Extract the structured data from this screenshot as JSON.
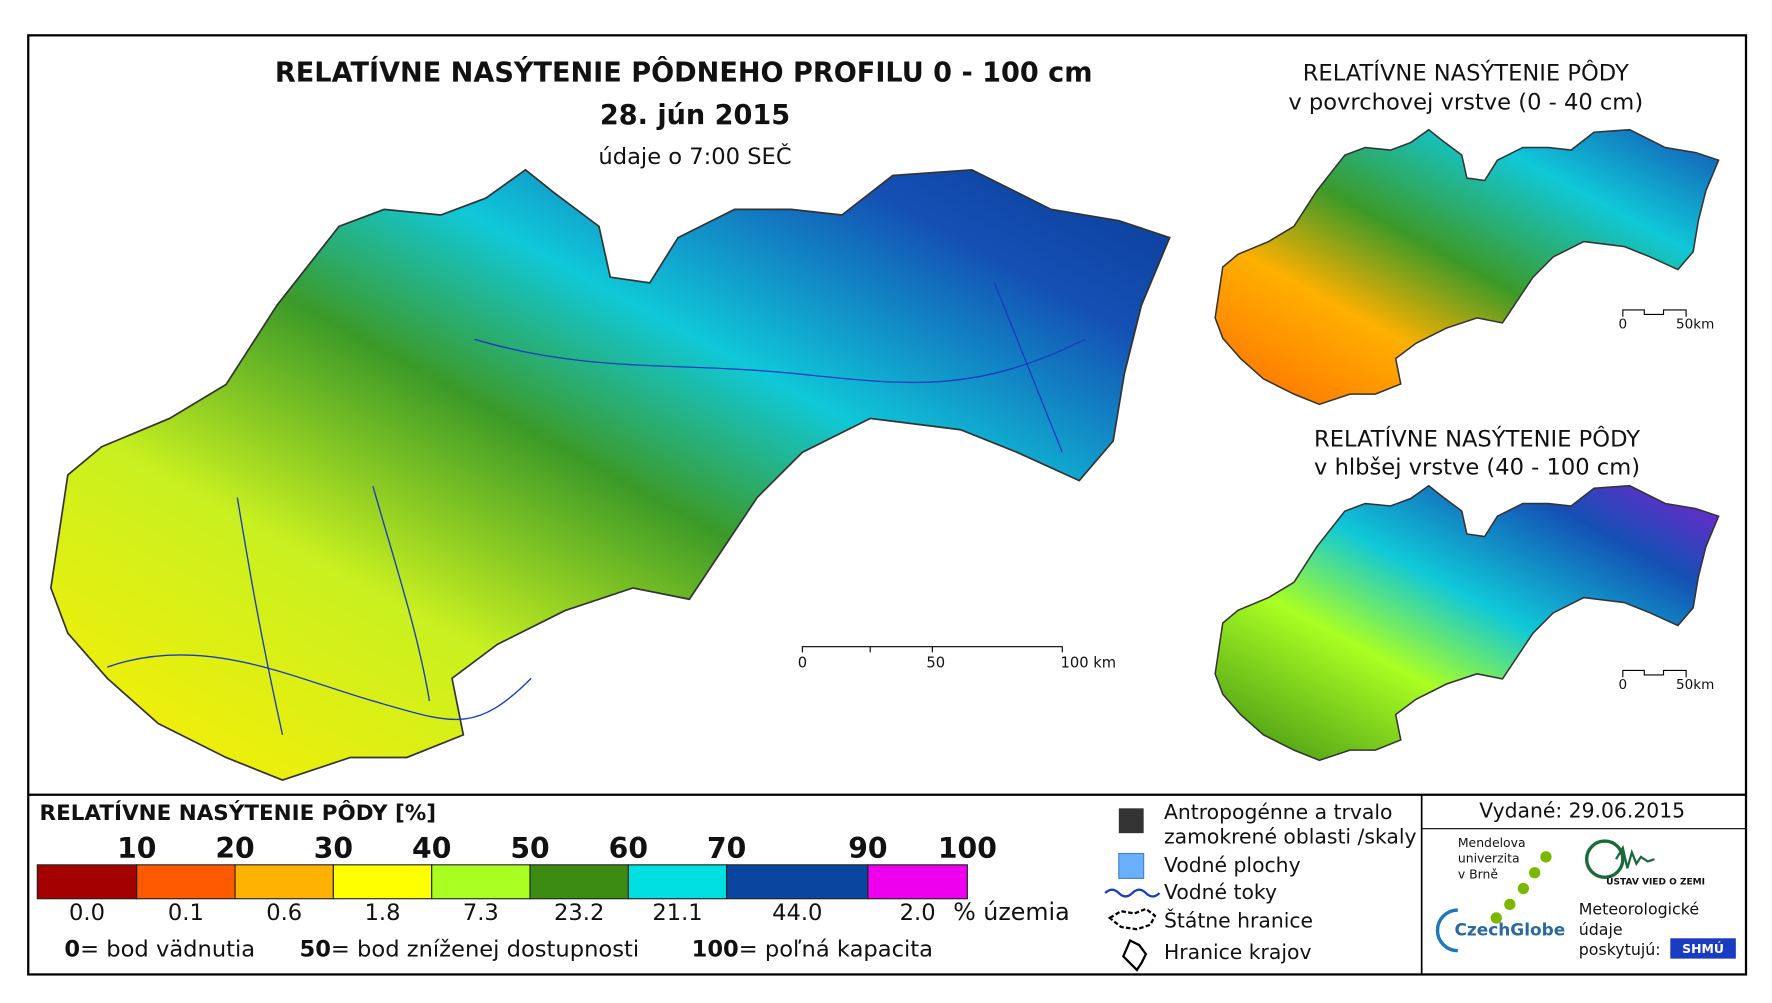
{
  "header": {
    "title": "RELATÍVNE NASÝTENIE PÔDNEHO PROFILU 0 - 100 cm",
    "date": "28. jún 2015",
    "time_note": "údaje o 7:00 SEČ"
  },
  "main_scale": [
    "0",
    "50",
    "100 km"
  ],
  "insets": [
    {
      "title": "RELATÍVNE NASÝTENIE PÔDY",
      "subtitle": "v povrchovej vrstve (0 - 40 cm)",
      "scale": [
        "0",
        "50km"
      ]
    },
    {
      "title": "RELATÍVNE NASÝTENIE PÔDY",
      "subtitle": "v hlbšej vrstve (40 - 100 cm)",
      "scale": [
        "0",
        "50km"
      ]
    }
  ],
  "legend": {
    "title": "RELATÍVNE NASÝTENIE PÔDY [%]",
    "breaks": [
      10,
      20,
      30,
      40,
      50,
      60,
      70,
      90,
      100
    ],
    "colors": [
      "#a50000",
      "#ff5a00",
      "#ffb300",
      "#ffff00",
      "#aaff22",
      "#3c8c14",
      "#00e0e0",
      "#0a46a0",
      "#ee00ee"
    ],
    "shares": [
      "0.0",
      "0.1",
      "0.6",
      "1.8",
      "7.3",
      "23.2",
      "21.1",
      "44.0",
      "2.0"
    ],
    "unit": "% územia",
    "notes": [
      {
        "value": "0",
        "text": "= bod vädnutia"
      },
      {
        "value": "50",
        "text": "= bod zníženej dostupnosti"
      },
      {
        "value": "100",
        "text": "= poľná kapacita"
      }
    ]
  },
  "symbols": [
    "Antropogénne a trvalo",
    "zamokrené oblasti /skaly",
    "Vodné plochy",
    "Vodné toky",
    "Štátne hranice",
    "Hranice krajov"
  ],
  "issued": "Vydané: 29.06.2015",
  "logos": {
    "mendel": [
      "Mendelova",
      "univerzita",
      "v Brně"
    ],
    "czechglobe": "CzechGlobe",
    "ustav": "ÚSTAV VIED O ZEMI",
    "provider": [
      "Meteorologické",
      "údaje",
      "poskytujú:"
    ],
    "shmu": "SHMÚ"
  }
}
